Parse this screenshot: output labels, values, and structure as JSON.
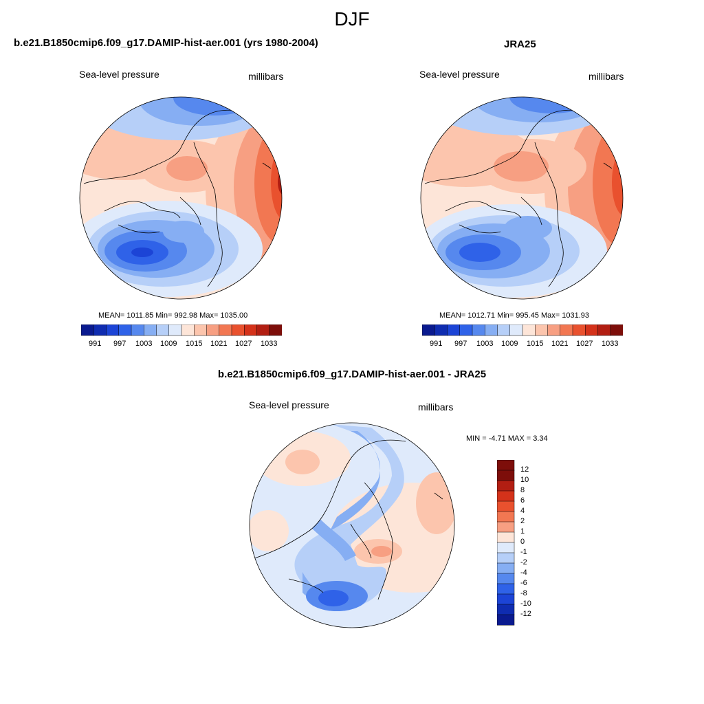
{
  "figure": {
    "title": "DJF"
  },
  "panels": {
    "model": {
      "title": "b.e21.B1850cmip6.f09_g17.DAMIP-hist-aer.001 (yrs 1980-2004)",
      "variable": "Sea-level pressure",
      "units": "millibars",
      "stats": "MEAN= 1011.85  Min= 992.98  Max= 1035.00",
      "colorbar_labels": [
        "991",
        "997",
        "1003",
        "1009",
        "1015",
        "1021",
        "1027",
        "1033"
      ]
    },
    "obs": {
      "title": "JRA25",
      "variable": "Sea-level pressure",
      "units": "millibars",
      "stats": "MEAN= 1012.71  Min= 995.45  Max= 1031.93",
      "colorbar_labels": [
        "991",
        "997",
        "1003",
        "1009",
        "1015",
        "1021",
        "1027",
        "1033"
      ]
    },
    "diff": {
      "title": "b.e21.B1850cmip6.f09_g17.DAMIP-hist-aer.001 - JRA25",
      "variable": "Sea-level pressure",
      "units": "millibars",
      "stats": "MIN =  -4.71 MAX =   3.34",
      "colorbar_labels": [
        "12",
        "10",
        "8",
        "6",
        "4",
        "2",
        "1",
        "0",
        "-1",
        "-2",
        "-4",
        "-6",
        "-8",
        "-10",
        "-12"
      ]
    }
  },
  "colors": {
    "abs_scale": [
      "#0a1a8f",
      "#0f2cb0",
      "#1c44d6",
      "#2f62e8",
      "#5688ee",
      "#86aef3",
      "#b6cff8",
      "#dfeafb",
      "#fde5d8",
      "#fcc5ad",
      "#f79f82",
      "#f27752",
      "#e9512e",
      "#d4321a",
      "#b21e12",
      "#7d0e0a"
    ],
    "diff_scale": [
      "#7d0e0a",
      "#b21e12",
      "#d4321a",
      "#e9512e",
      "#f27752",
      "#f79f82",
      "#fde5d8",
      "#dfeafb",
      "#b6cff8",
      "#86aef3",
      "#5688ee",
      "#2f62e8",
      "#1c44d6",
      "#0f2cb0",
      "#0a1a8f"
    ]
  }
}
